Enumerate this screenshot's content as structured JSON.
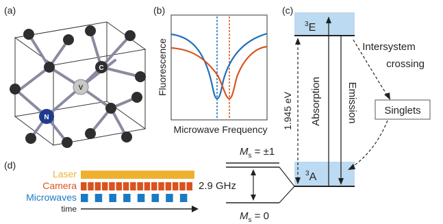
{
  "panels": {
    "a": {
      "label": "(a)",
      "carbon_label": "C",
      "vacancy_label": "V",
      "nitrogen_label": "N"
    },
    "b": {
      "label": "(b)",
      "ylabel": "Fluorescence",
      "xlabel": "Microwave Frequency"
    },
    "c": {
      "label": "(c)",
      "excited_state": "E",
      "excited_state_sup": "3",
      "ground_state": "A",
      "ground_state_sup": "3",
      "energy_label": "1.945 eV",
      "absorption_label": "Absorption",
      "emission_label": "Emission",
      "isc_line1": "Intersystem",
      "isc_line2": "crossing",
      "singlets_label": "Singlets"
    },
    "d": {
      "label": "(d)",
      "rows": [
        {
          "label": "Laser",
          "pattern": "solid"
        },
        {
          "label": "Camera",
          "pattern": "dense"
        },
        {
          "label": "Microwaves",
          "pattern": "sparse"
        }
      ],
      "time_label": "time"
    },
    "ground_splitting": {
      "ms_pm1_prefix": "M",
      "ms_pm1_sub": "s",
      "ms_pm1_value": " = ±1",
      "ms_0_prefix": "M",
      "ms_0_sub": "s",
      "ms_0_value": " = 0",
      "gap_label": "2.9 GHz"
    }
  },
  "colors": {
    "orange_curve": "#d9531e",
    "blue_curve": "#1f6fb5",
    "laser": "#eeb12f",
    "camera": "#d9531e",
    "microwaves": "#1b7ac2",
    "state_band": "#bcdaf1",
    "atom_carbon": "#2e2e2e",
    "atom_vacancy": "#c8c8c8",
    "atom_nitrogen": "#1f3c8c",
    "bond": "#8a8aa0"
  }
}
